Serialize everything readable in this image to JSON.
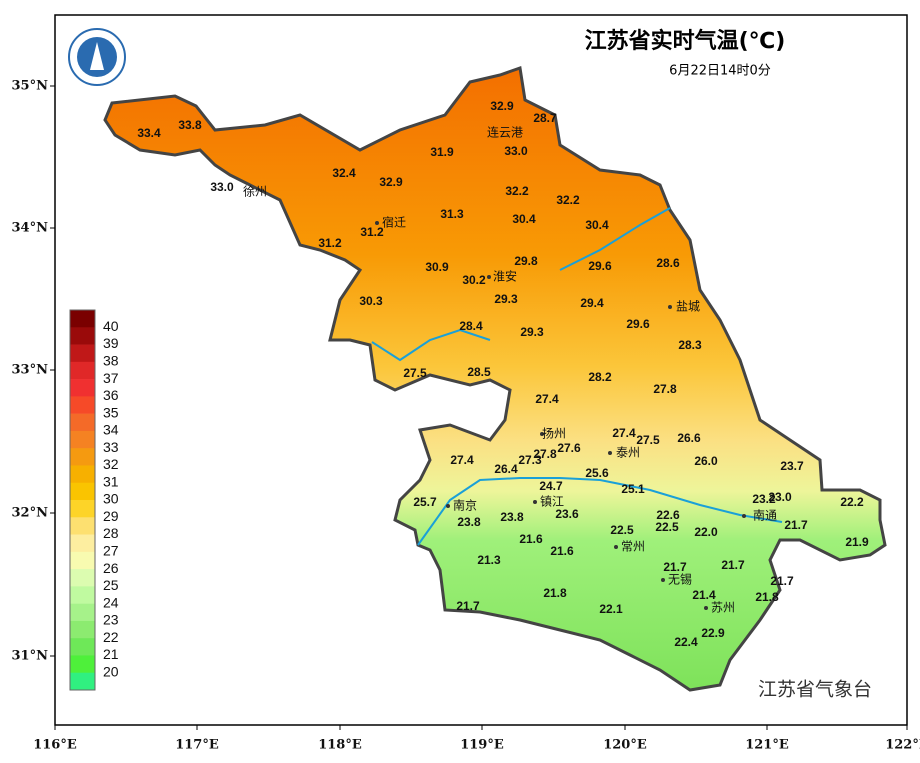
{
  "title": "江苏省实时气温(℃)",
  "subtitle": "6月22日14时0分",
  "footer": "江苏省气象台",
  "lon_labels": [
    "116°E",
    "117°E",
    "118°E",
    "119°E",
    "120°E",
    "121°E",
    "122°E"
  ],
  "lat_labels": [
    "35°N",
    "34°N",
    "33°N",
    "32°N",
    "31°N"
  ],
  "cities": [
    "连云港",
    "徐州",
    "宿迁",
    "淮安",
    "盐城",
    "扬州",
    "泰州",
    "镇江",
    "南京",
    "南通",
    "常州",
    "无锡",
    "苏州"
  ],
  "temperatures": [
    "32.9",
    "28.7",
    "33.4",
    "33.8",
    "33.0",
    "31.9",
    "32.4",
    "32.9",
    "33.0",
    "32.2",
    "32.2",
    "31.3",
    "30.4",
    "30.4",
    "31.2",
    "31.2",
    "29.8",
    "29.6",
    "28.6",
    "30.9",
    "30.2",
    "29.3",
    "29.4",
    "30.3",
    "29.6",
    "28.4",
    "29.3",
    "28.3",
    "27.5",
    "28.5",
    "28.2",
    "27.8",
    "27.4",
    "27.4",
    "27.5",
    "26.6",
    "27.6",
    "27.8",
    "27.3",
    "27.4",
    "26.0",
    "26.4",
    "23.7",
    "25.6",
    "24.7",
    "25.1",
    "25.7",
    "23.2",
    "23.0",
    "22.2",
    "22.6",
    "23.8",
    "23.8",
    "23.6",
    "22.5",
    "22.5",
    "22.0",
    "21.7",
    "21.6",
    "21.6",
    "21.9",
    "21.3",
    "21.7",
    "21.7",
    "21.7",
    "21.8",
    "21.4",
    "21.8",
    "21.7",
    "22.1",
    "22.9",
    "22.4"
  ],
  "legend": {
    "ticks": [
      40,
      39,
      38,
      37,
      36,
      35,
      34,
      33,
      32,
      31,
      30,
      29,
      28,
      27,
      26,
      25,
      24,
      23,
      22,
      21,
      20
    ],
    "colors": [
      "#7a0000",
      "#9a0a0a",
      "#c01818",
      "#e02828",
      "#f03030",
      "#f64a28",
      "#f46a28",
      "#f58222",
      "#f59a10",
      "#f7b000",
      "#fac400",
      "#fdd428",
      "#fde070",
      "#fdeea0",
      "#f8fbb0",
      "#dcfcb0",
      "#c0faa0",
      "#a6f28a",
      "#8ceb70",
      "#6ee858",
      "#4ef03a",
      "#30f080"
    ]
  }
}
